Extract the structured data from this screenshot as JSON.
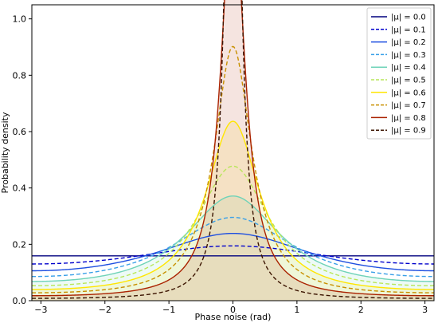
{
  "chart_data": {
    "type": "line",
    "title": "",
    "xlabel": "Phase noise (rad)",
    "ylabel": "Probability density",
    "xlim": [
      -3.1416,
      3.1416
    ],
    "ylim": [
      0,
      1.05
    ],
    "x_ticks": [
      -3,
      -2,
      -1,
      0,
      1,
      2,
      3
    ],
    "y_ticks": [
      "0.0",
      "0.2",
      "0.4",
      "0.6",
      "0.8",
      "1.0"
    ],
    "grid": false,
    "legend_position": "top-right",
    "series": [
      {
        "name": "|μ| = 0.0",
        "mu": 0.0,
        "color": "#00007f",
        "dash": "solid",
        "fill": false
      },
      {
        "name": "|μ| = 0.1",
        "mu": 0.1,
        "color": "#0000cc",
        "dash": "dashed",
        "fill": false
      },
      {
        "name": "|μ| = 0.2",
        "mu": 0.2,
        "color": "#1f4fe0",
        "dash": "solid",
        "fill": false
      },
      {
        "name": "|μ| = 0.3",
        "mu": 0.3,
        "color": "#3aa0e8",
        "dash": "dashed",
        "fill": false
      },
      {
        "name": "|μ| = 0.4",
        "mu": 0.4,
        "color": "#6fd3b8",
        "dash": "solid",
        "fill": true
      },
      {
        "name": "|μ| = 0.5",
        "mu": 0.5,
        "color": "#b8e65a",
        "dash": "dashed",
        "fill": false
      },
      {
        "name": "|μ| = 0.6",
        "mu": 0.6,
        "color": "#ffe600",
        "dash": "solid",
        "fill": true
      },
      {
        "name": "|μ| = 0.7",
        "mu": 0.7,
        "color": "#c89000",
        "dash": "dashed",
        "fill": false
      },
      {
        "name": "|μ| = 0.8",
        "mu": 0.8,
        "color": "#aa2200",
        "dash": "solid",
        "fill": true
      },
      {
        "name": "|μ| = 0.9",
        "mu": 0.9,
        "color": "#3b1400",
        "dash": "dashed",
        "fill": false
      }
    ]
  }
}
